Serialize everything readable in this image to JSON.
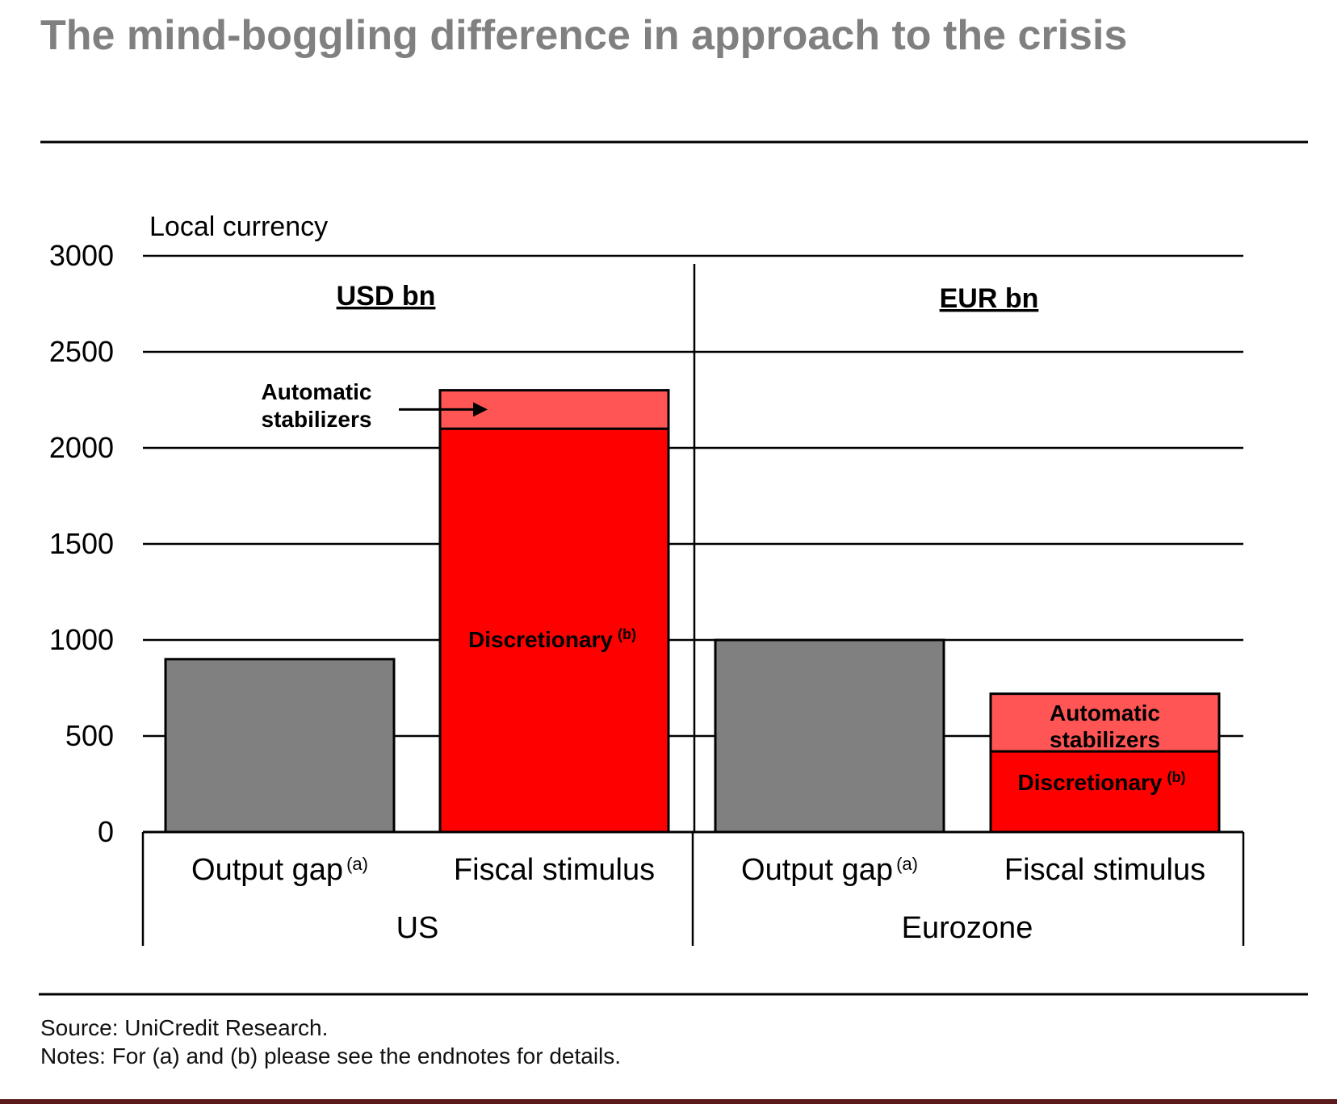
{
  "header": {
    "title": "The mind-boggling difference in approach to the crisis"
  },
  "footer": {
    "source": "Source: UniCredit Research.",
    "notes": "Notes: For (a) and (b) please see the endnotes for details."
  },
  "colors": {
    "title": "#808080",
    "output_gap": "#808080",
    "discretionary": "#ff0000",
    "automatic_stabilizers": "#ff5555",
    "axis": "#000000",
    "bottom_band": "#5a1a1a"
  },
  "chart_data": {
    "type": "bar",
    "stacked": true,
    "ylabel": "Local currency",
    "ylim": [
      0,
      3000
    ],
    "yticks": [
      0,
      500,
      1000,
      1500,
      2000,
      2500,
      3000
    ],
    "grid": true,
    "groups": [
      {
        "name": "US",
        "unit": "USD bn",
        "bars": [
          {
            "category": "Output gap",
            "footnote": "(a)",
            "segments": [
              {
                "name": "Output gap",
                "value": 900
              }
            ]
          },
          {
            "category": "Fiscal stimulus",
            "footnote": "",
            "segments": [
              {
                "name": "Discretionary",
                "footnote": "(b)",
                "value": 2100
              },
              {
                "name": "Automatic stabilizers",
                "footnote": "",
                "value": 200
              }
            ]
          }
        ]
      },
      {
        "name": "Eurozone",
        "unit": "EUR bn",
        "bars": [
          {
            "category": "Output gap",
            "footnote": "(a)",
            "segments": [
              {
                "name": "Output gap",
                "value": 1000
              }
            ]
          },
          {
            "category": "Fiscal stimulus",
            "footnote": "",
            "segments": [
              {
                "name": "Discretionary",
                "footnote": "(b)",
                "value": 420
              },
              {
                "name": "Automatic stabilizers",
                "footnote": "",
                "value": 300
              }
            ]
          }
        ]
      }
    ],
    "annotations": [
      {
        "text_lines": [
          "Automatic",
          "stabilizers"
        ],
        "target": "US Fiscal stimulus - Automatic stabilizers",
        "arrow": true
      },
      {
        "text_lines": [
          "Discretionary"
        ],
        "superscript": "(b)",
        "target": "US Fiscal stimulus - Discretionary"
      },
      {
        "text_lines": [
          "Automatic",
          "stabilizers"
        ],
        "target": "Eurozone Fiscal stimulus - Automatic stabilizers"
      },
      {
        "text_lines": [
          "Discretionary"
        ],
        "superscript": "(b)",
        "target": "Eurozone Fiscal stimulus - Discretionary"
      }
    ]
  }
}
